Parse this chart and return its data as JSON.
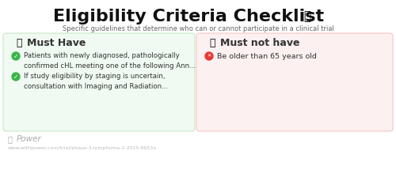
{
  "title": "Eligibility Criteria Checklist",
  "subtitle": "Specific guidelines that determine who can or cannot participate in a clinical trial",
  "bg_color": "#ffffff",
  "left_panel": {
    "bg_color": "#f0faf2",
    "border_color": "#c8e6c9",
    "header_icon": "👍",
    "header_text": "Must Have",
    "header_color": "#333333",
    "items": [
      {
        "icon_color": "#3ab54a",
        "text": "Patients with newly diagnosed, pathologically\nconfirmed cHL meeting one of the following Ann...",
        "text_color": "#333333"
      },
      {
        "icon_color": "#3ab54a",
        "text": "If study eligibility by staging is uncertain,\nconsultation with Imaging and Radiation...",
        "text_color": "#333333"
      }
    ]
  },
  "right_panel": {
    "bg_color": "#fdf0f0",
    "border_color": "#f5c6c6",
    "header_icon": "👎",
    "header_text": "Must not have",
    "header_color": "#333333",
    "items": [
      {
        "icon_color": "#e53935",
        "text": "Be older than 65 years old",
        "text_color": "#333333"
      }
    ]
  },
  "footer_text": "Power",
  "footer_url": "www.withpower.com/trial/phase-3-lymphoma-2-2015-8653a",
  "footer_color": "#aaaaaa"
}
